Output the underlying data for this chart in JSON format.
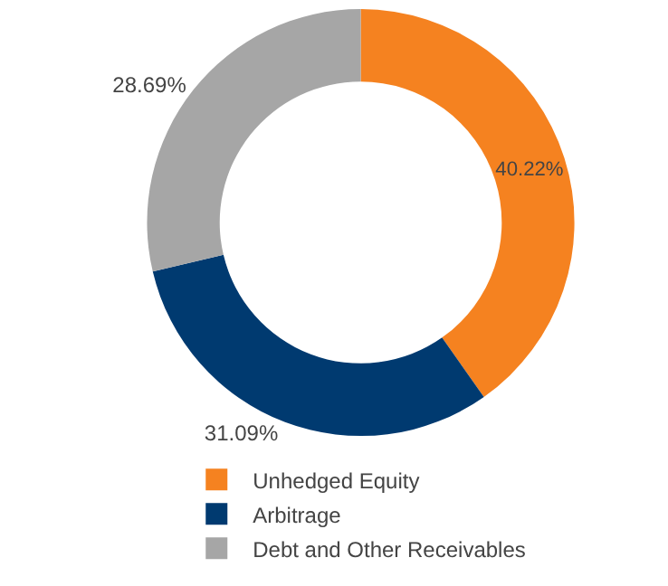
{
  "chart_data": {
    "type": "donut",
    "categories": [
      "Unhedged Equity",
      "Arbitrage",
      "Debt and Other Receivables"
    ],
    "values": [
      40.22,
      31.09,
      28.69
    ],
    "colors": [
      "#f58220",
      "#003a70",
      "#a6a6a6"
    ],
    "value_labels": [
      "40.22%",
      "31.09%",
      "28.69%"
    ],
    "legend": "bottom left"
  }
}
